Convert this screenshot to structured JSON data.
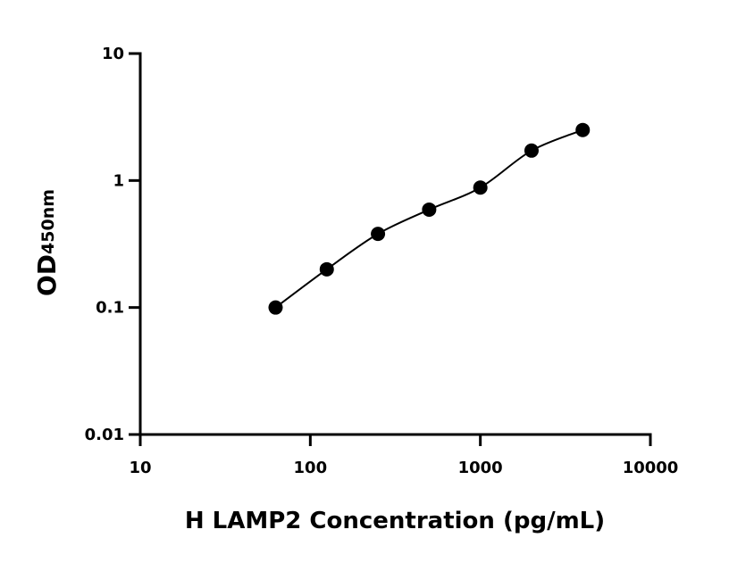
{
  "chart_data": {
    "type": "scatter",
    "x_label": "H LAMP2 Concentration (pg/mL)",
    "y_label": "OD",
    "y_label_subscript": "450nm",
    "x": [
      62.5,
      125,
      250,
      500,
      1000,
      2000,
      4000
    ],
    "values": [
      0.1,
      0.2,
      0.38,
      0.59,
      0.88,
      1.72,
      2.5
    ],
    "color": "#000000",
    "log_x": true,
    "log_y": true,
    "xlim": [
      10,
      10000
    ],
    "xticks": [
      10,
      100,
      1000,
      10000
    ],
    "ylim": [
      0.01,
      10
    ],
    "yticks": [
      0.01,
      0.1,
      1,
      10
    ],
    "fit_line": true
  }
}
